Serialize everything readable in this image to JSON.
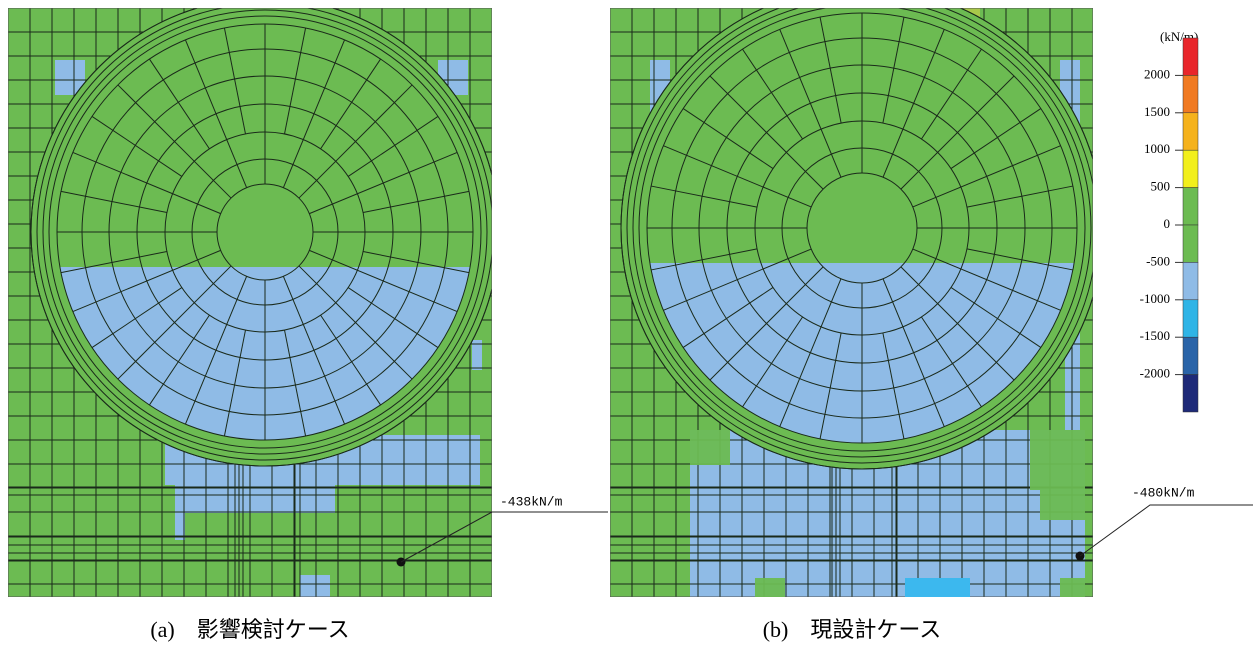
{
  "panels": [
    {
      "caption": "(a)　影響検討ケース",
      "annotation": "-438kN/m"
    },
    {
      "caption": "(b)　現設計ケース",
      "annotation": "-480kN/m"
    }
  ],
  "legend": {
    "unit": "(kN/m)",
    "labels": [
      "2000",
      "1500",
      "1000",
      "500",
      "0",
      "-500",
      "-1000",
      "-1500",
      "-2000"
    ],
    "colors": [
      "#e8262b",
      "#f07a22",
      "#f5b21c",
      "#f2ef1c",
      "#6cbb52",
      "#6cbb52",
      "#8fbbe6",
      "#2fb4e6",
      "#2a64a8",
      "#1e2a78"
    ]
  }
}
